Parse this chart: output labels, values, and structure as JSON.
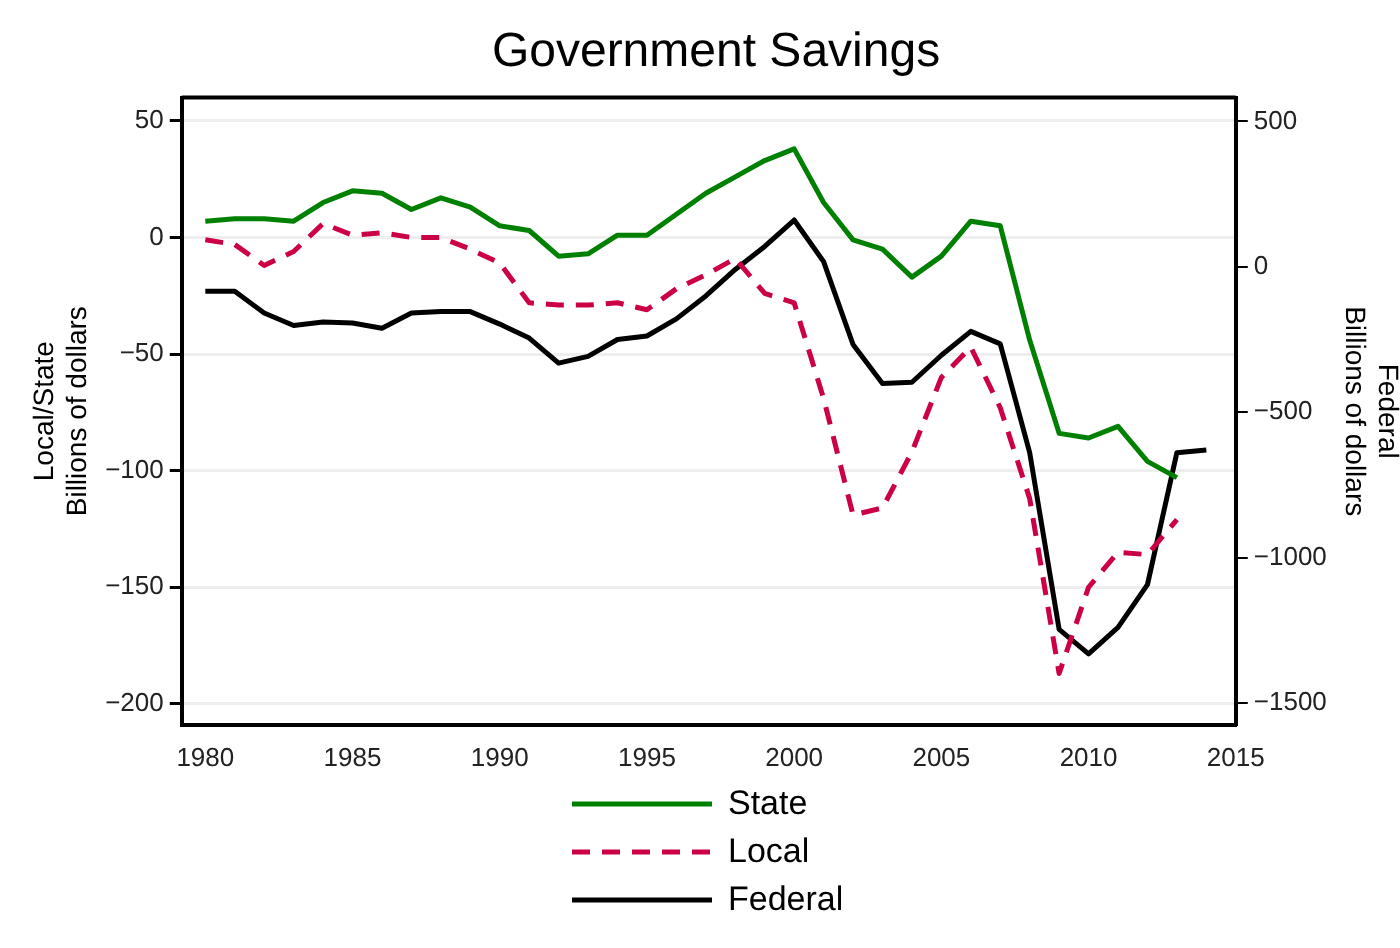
{
  "chart_data": {
    "type": "line",
    "title": "Government Savings",
    "ylabel": "Local/State\nBillions of dollars",
    "y2label": "Federal\nBillions of dollars",
    "x": [
      1980,
      1981,
      1982,
      1983,
      1984,
      1985,
      1986,
      1987,
      1988,
      1989,
      1990,
      1991,
      1992,
      1993,
      1994,
      1995,
      1996,
      1997,
      1998,
      1999,
      2000,
      2001,
      2002,
      2003,
      2004,
      2005,
      2006,
      2007,
      2008,
      2009,
      2010,
      2011,
      2012,
      2013,
      2014
    ],
    "series": [
      {
        "name": "State",
        "color": "#008000",
        "line_style": "solid",
        "values": [
          7,
          8,
          8,
          7,
          15,
          20,
          19,
          12,
          17,
          13,
          5,
          3,
          -8,
          -7,
          1,
          1,
          10,
          19,
          26,
          33,
          38,
          15,
          -1,
          -5,
          -17,
          -8,
          7,
          5,
          -44,
          -84,
          -86,
          -81,
          -96,
          -103,
          null
        ]
      },
      {
        "name": "Local",
        "color": "#cc0044",
        "line_style": "dashed",
        "values": [
          -1,
          -3,
          -12,
          -6,
          6,
          1,
          2,
          0,
          0,
          -5,
          -11,
          -28,
          -29,
          -29,
          -28,
          -31,
          -22,
          -16,
          -9,
          -24,
          -28,
          -69,
          -119,
          -116,
          -92,
          -60,
          -47,
          -73,
          -112,
          -187,
          -150,
          -135,
          -136,
          -121,
          null
        ]
      },
      {
        "name": "Federal",
        "color": "#000000",
        "line_style": "solid",
        "axis": "y2",
        "values": [
          -84,
          -84,
          -159,
          -202,
          -190,
          -193,
          -211,
          -159,
          -154,
          -154,
          -197,
          -245,
          -331,
          -308,
          -250,
          -238,
          -179,
          -100,
          -9,
          70,
          161,
          18,
          -267,
          -401,
          -397,
          -304,
          -222,
          -265,
          -639,
          -1247,
          -1331,
          -1240,
          -1093,
          -639,
          -630
        ]
      }
    ],
    "xlim": [
      1979.2,
      2015
    ],
    "xticks": [
      1980,
      1985,
      1990,
      1995,
      2000,
      2005,
      2010,
      2015
    ],
    "ylim": [
      -209,
      60
    ],
    "yticks": [
      50,
      0,
      {
        "value": -50,
        "label": "−50"
      },
      {
        "value": -100,
        "label": "−100"
      },
      {
        "value": -150,
        "label": "−150"
      },
      {
        "value": -200,
        "label": "−200"
      }
    ],
    "y2lim": [
      -1575,
      582
    ],
    "y2ticks": [
      500,
      0,
      {
        "value": -500,
        "label": "−500"
      },
      {
        "value": -1000,
        "label": "−1000"
      },
      {
        "value": -1500,
        "label": "−1500"
      }
    ],
    "grid": "y",
    "legend": "bottom",
    "marker": "none"
  }
}
